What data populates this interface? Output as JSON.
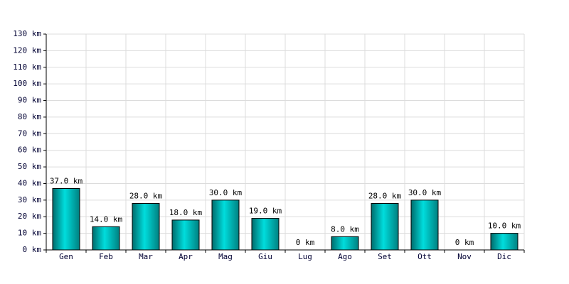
{
  "chart_data": {
    "type": "bar",
    "categories": [
      "Gen",
      "Feb",
      "Mar",
      "Apr",
      "Mag",
      "Giu",
      "Lug",
      "Ago",
      "Set",
      "Ott",
      "Nov",
      "Dic"
    ],
    "values": [
      37,
      14,
      28,
      18,
      30,
      19,
      0,
      8,
      28,
      30,
      0,
      10
    ],
    "value_labels": [
      "37.0 km",
      "14.0 km",
      "28.0 km",
      "18.0 km",
      "30.0 km",
      "19.0 km",
      "0 km",
      "8.0 km",
      "28.0 km",
      "30.0 km",
      "0 km",
      "10.0 km"
    ],
    "color": "#00dddd",
    "ylim": [
      0,
      130
    ],
    "yticks": [
      {
        "value": 0,
        "label": "0 km"
      },
      {
        "value": 10,
        "label": "10 km"
      },
      {
        "value": 20,
        "label": "20 km"
      },
      {
        "value": 30,
        "label": "30 km"
      },
      {
        "value": 40,
        "label": "40 km"
      },
      {
        "value": 50,
        "label": "50 km"
      },
      {
        "value": 60,
        "label": "60 km"
      },
      {
        "value": 70,
        "label": "70 km"
      },
      {
        "value": 80,
        "label": "80 km"
      },
      {
        "value": 90,
        "label": "90 km"
      },
      {
        "value": 100,
        "label": "100 km"
      },
      {
        "value": 110,
        "label": "110 km"
      },
      {
        "value": 120,
        "label": "120 km"
      },
      {
        "value": 130,
        "label": "130 km"
      }
    ],
    "grid": true
  }
}
